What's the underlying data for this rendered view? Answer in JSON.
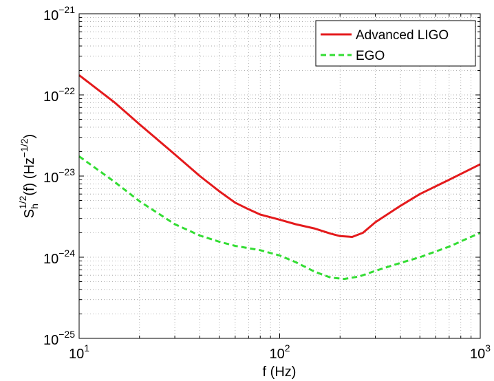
{
  "chart_data": {
    "type": "line",
    "xlabel": "f (Hz)",
    "ylabel": {
      "base": "S",
      "sub": "h",
      "sup": "1/2",
      "mid": "(f) (Hz",
      "unit_sup": "−1/2",
      "end": ")"
    },
    "x_scale": "log",
    "y_scale": "log",
    "xlim": [
      10,
      1000
    ],
    "ylim": [
      1e-25,
      1e-21
    ],
    "grid": true,
    "legend_position": "top-right",
    "x_ticks": [
      {
        "base": "10",
        "exp": "1"
      },
      {
        "base": "10",
        "exp": "2"
      },
      {
        "base": "10",
        "exp": "3"
      }
    ],
    "y_ticks": [
      {
        "base": "10",
        "exp": "−25"
      },
      {
        "base": "10",
        "exp": "−24"
      },
      {
        "base": "10",
        "exp": "−23"
      },
      {
        "base": "10",
        "exp": "−22"
      },
      {
        "base": "10",
        "exp": "−21"
      }
    ],
    "series": [
      {
        "name": "Advanced LIGO",
        "color": "#e41a1c",
        "style": "solid",
        "x": [
          10,
          15,
          20,
          30,
          40,
          50,
          60,
          70,
          80,
          100,
          120,
          150,
          180,
          200,
          230,
          260,
          300,
          400,
          500,
          700,
          1000
        ],
        "y": [
          1.75e-22,
          8.1e-23,
          4.35e-23,
          1.85e-23,
          1e-23,
          6.5e-24,
          4.7e-24,
          3.9e-24,
          3.35e-24,
          2.9e-24,
          2.55e-24,
          2.25e-24,
          1.95e-24,
          1.82e-24,
          1.78e-24,
          2e-24,
          2.7e-24,
          4.3e-24,
          6e-24,
          9e-24,
          1.4e-23
        ]
      },
      {
        "name": "EGO",
        "color": "#33dd33",
        "style": "dashed",
        "x": [
          10,
          15,
          20,
          30,
          40,
          50,
          60,
          80,
          100,
          120,
          150,
          180,
          210,
          250,
          300,
          400,
          500,
          700,
          1000
        ],
        "y": [
          1.75e-23,
          8.5e-24,
          4.9e-24,
          2.55e-24,
          1.85e-24,
          1.55e-24,
          1.38e-24,
          1.22e-24,
          1.05e-24,
          8.7e-25,
          6.6e-25,
          5.6e-25,
          5.4e-25,
          5.8e-25,
          6.8e-25,
          8.5e-25,
          1e-24,
          1.35e-24,
          2e-24
        ]
      }
    ]
  }
}
